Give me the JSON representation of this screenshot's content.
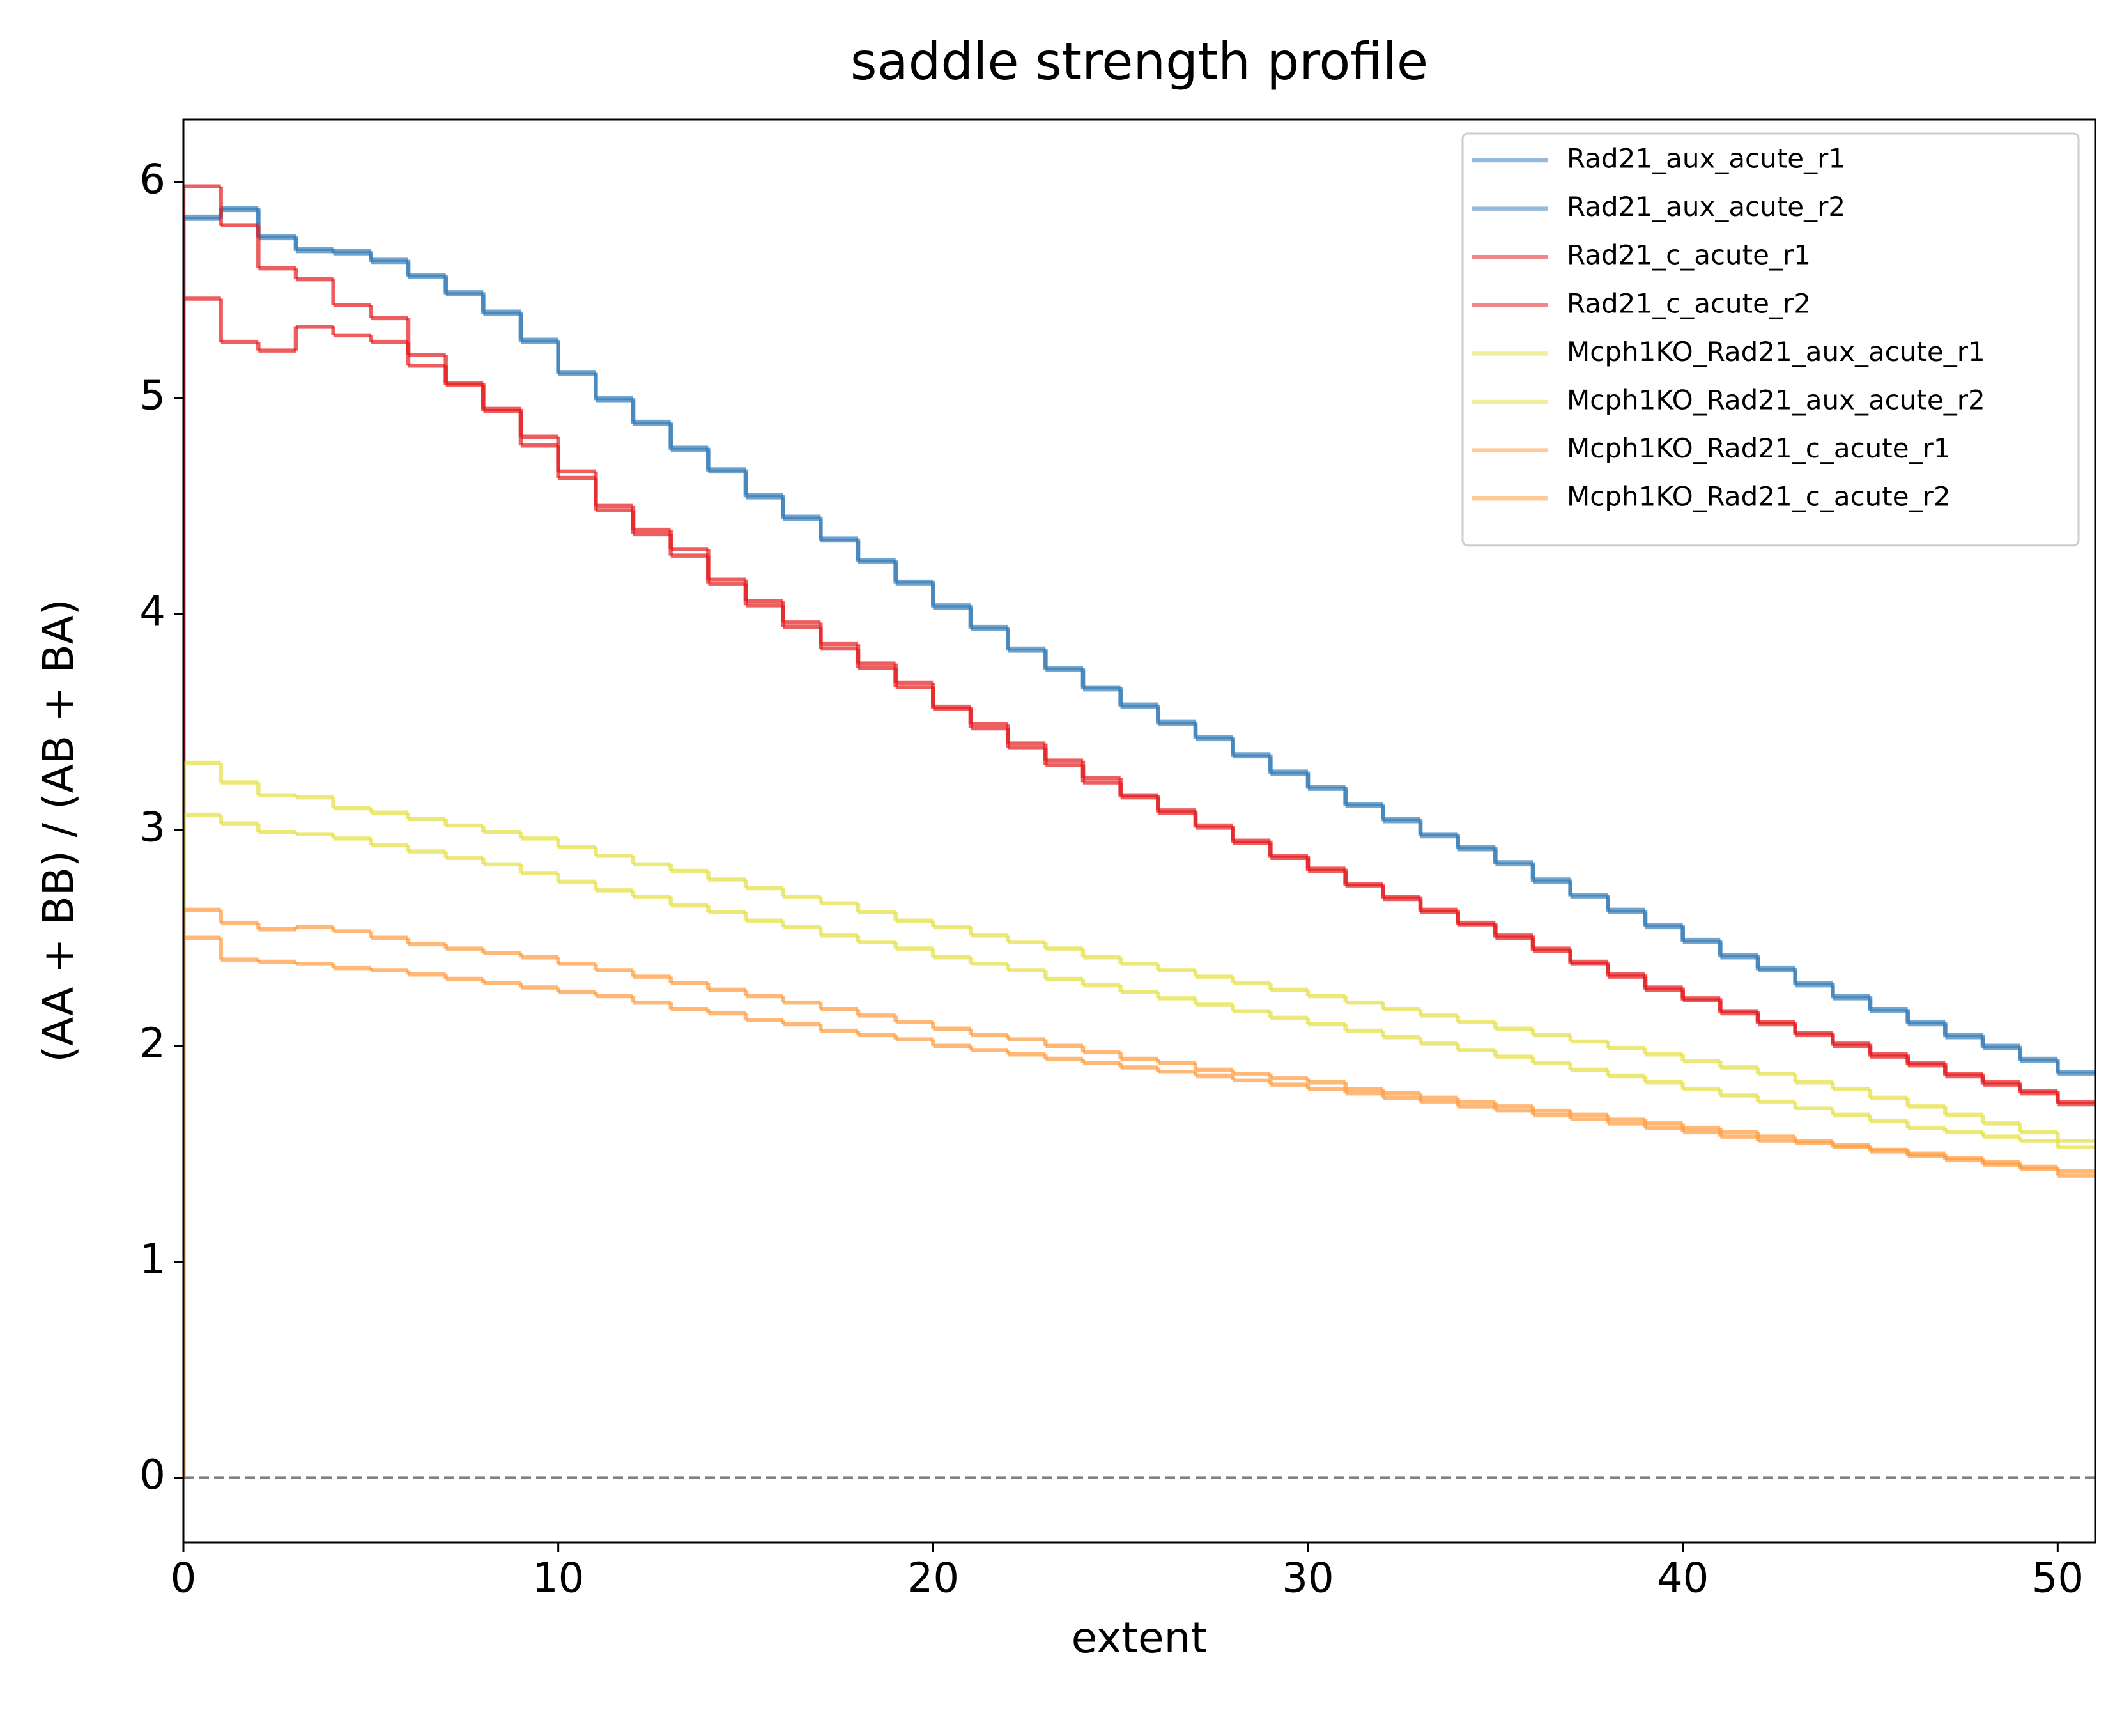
{
  "chart_data": {
    "type": "step",
    "title": "saddle strength profile",
    "xlabel": "extent",
    "ylabel": "(AA + BB) / (AB + BA)",
    "x": [
      0,
      1,
      2,
      3,
      4,
      5,
      6,
      7,
      8,
      9,
      10,
      11,
      12,
      13,
      14,
      15,
      16,
      17,
      18,
      19,
      20,
      21,
      22,
      23,
      24,
      25,
      26,
      27,
      28,
      29,
      30,
      31,
      32,
      33,
      34,
      35,
      36,
      37,
      38,
      39,
      40,
      41,
      42,
      43,
      44,
      45,
      46,
      47,
      48,
      49,
      50,
      51
    ],
    "xlim": [
      0,
      51
    ],
    "ylim": [
      -0.3,
      6.29
    ],
    "xticks": [
      0,
      10,
      20,
      30,
      40,
      50
    ],
    "yticks": [
      0,
      1,
      2,
      3,
      4,
      5,
      6
    ],
    "grid": false,
    "legend": "upper right",
    "alpha": 0.7,
    "hline": 0,
    "hline_color": "#808080",
    "series": [
      {
        "name": "Rad21_aux_acute_r1",
        "color": "#377eb8",
        "values": [
          0,
          5.84,
          5.88,
          5.75,
          5.69,
          5.68,
          5.64,
          5.57,
          5.49,
          5.4,
          5.27,
          5.12,
          5.0,
          4.89,
          4.77,
          4.67,
          4.55,
          4.45,
          4.35,
          4.25,
          4.15,
          4.04,
          3.94,
          3.84,
          3.75,
          3.66,
          3.58,
          3.5,
          3.43,
          3.35,
          3.27,
          3.2,
          3.12,
          3.05,
          2.98,
          2.92,
          2.85,
          2.77,
          2.7,
          2.63,
          2.56,
          2.49,
          2.42,
          2.36,
          2.29,
          2.23,
          2.17,
          2.11,
          2.05,
          2.0,
          1.94,
          1.88
        ]
      },
      {
        "name": "Rad21_aux_acute_r2",
        "color": "#377eb8",
        "values": [
          0,
          5.83,
          5.87,
          5.74,
          5.68,
          5.67,
          5.63,
          5.56,
          5.48,
          5.39,
          5.26,
          5.11,
          4.99,
          4.88,
          4.76,
          4.66,
          4.54,
          4.44,
          4.34,
          4.24,
          4.14,
          4.03,
          3.93,
          3.83,
          3.74,
          3.65,
          3.57,
          3.49,
          3.42,
          3.34,
          3.26,
          3.19,
          3.11,
          3.04,
          2.97,
          2.91,
          2.84,
          2.76,
          2.69,
          2.62,
          2.55,
          2.48,
          2.41,
          2.35,
          2.28,
          2.22,
          2.16,
          2.1,
          2.04,
          1.99,
          1.93,
          1.87
        ]
      },
      {
        "name": "Rad21_c_acute_r1",
        "color": "#e41a1c",
        "values": [
          0,
          5.98,
          5.8,
          5.6,
          5.55,
          5.43,
          5.37,
          5.2,
          5.06,
          4.95,
          4.82,
          4.66,
          4.5,
          4.39,
          4.3,
          4.16,
          4.06,
          3.96,
          3.86,
          3.77,
          3.68,
          3.57,
          3.49,
          3.4,
          3.32,
          3.24,
          3.16,
          3.09,
          3.02,
          2.95,
          2.88,
          2.82,
          2.75,
          2.69,
          2.63,
          2.57,
          2.51,
          2.45,
          2.39,
          2.33,
          2.27,
          2.22,
          2.16,
          2.11,
          2.06,
          2.01,
          1.96,
          1.92,
          1.87,
          1.83,
          1.79,
          1.74
        ]
      },
      {
        "name": "Rad21_c_acute_r2",
        "color": "#e41a1c",
        "values": [
          0,
          5.46,
          5.26,
          5.22,
          5.33,
          5.29,
          5.26,
          5.15,
          5.07,
          4.94,
          4.78,
          4.63,
          4.48,
          4.37,
          4.27,
          4.14,
          4.04,
          3.94,
          3.84,
          3.75,
          3.66,
          3.56,
          3.47,
          3.38,
          3.3,
          3.22,
          3.15,
          3.08,
          3.01,
          2.94,
          2.87,
          2.81,
          2.74,
          2.68,
          2.62,
          2.56,
          2.5,
          2.44,
          2.38,
          2.32,
          2.26,
          2.21,
          2.15,
          2.1,
          2.05,
          2.0,
          1.95,
          1.91,
          1.86,
          1.82,
          1.78,
          1.73
        ]
      },
      {
        "name": "Mcph1KO_Rad21_aux_acute_r1",
        "color": "#e5e040",
        "values": [
          0,
          3.31,
          3.22,
          3.16,
          3.15,
          3.1,
          3.08,
          3.05,
          3.02,
          2.99,
          2.96,
          2.92,
          2.88,
          2.84,
          2.81,
          2.77,
          2.73,
          2.69,
          2.66,
          2.62,
          2.58,
          2.55,
          2.51,
          2.48,
          2.45,
          2.41,
          2.38,
          2.35,
          2.32,
          2.29,
          2.26,
          2.23,
          2.2,
          2.17,
          2.14,
          2.11,
          2.08,
          2.05,
          2.02,
          1.99,
          1.96,
          1.93,
          1.9,
          1.87,
          1.83,
          1.8,
          1.76,
          1.72,
          1.68,
          1.64,
          1.6,
          1.56
        ]
      },
      {
        "name": "Mcph1KO_Rad21_aux_acute_r2",
        "color": "#e5e040",
        "values": [
          0,
          3.07,
          3.03,
          2.99,
          2.98,
          2.96,
          2.93,
          2.9,
          2.87,
          2.84,
          2.8,
          2.76,
          2.72,
          2.69,
          2.65,
          2.62,
          2.58,
          2.55,
          2.51,
          2.48,
          2.45,
          2.41,
          2.38,
          2.35,
          2.31,
          2.28,
          2.25,
          2.22,
          2.19,
          2.16,
          2.13,
          2.1,
          2.07,
          2.04,
          2.01,
          1.98,
          1.95,
          1.92,
          1.89,
          1.86,
          1.83,
          1.8,
          1.77,
          1.74,
          1.71,
          1.68,
          1.65,
          1.62,
          1.6,
          1.58,
          1.56,
          1.53
        ]
      },
      {
        "name": "Mcph1KO_Rad21_c_acute_r1",
        "color": "#ff9a3c",
        "values": [
          0,
          2.63,
          2.57,
          2.54,
          2.55,
          2.53,
          2.5,
          2.47,
          2.45,
          2.43,
          2.41,
          2.38,
          2.35,
          2.32,
          2.29,
          2.26,
          2.23,
          2.2,
          2.17,
          2.14,
          2.11,
          2.08,
          2.05,
          2.03,
          2.0,
          1.97,
          1.94,
          1.92,
          1.89,
          1.87,
          1.85,
          1.83,
          1.8,
          1.78,
          1.76,
          1.74,
          1.72,
          1.7,
          1.68,
          1.66,
          1.64,
          1.62,
          1.6,
          1.58,
          1.56,
          1.54,
          1.52,
          1.5,
          1.48,
          1.46,
          1.44,
          1.42
        ]
      },
      {
        "name": "Mcph1KO_Rad21_c_acute_r2",
        "color": "#ff9a3c",
        "values": [
          0,
          2.5,
          2.4,
          2.39,
          2.38,
          2.36,
          2.35,
          2.33,
          2.31,
          2.29,
          2.27,
          2.25,
          2.23,
          2.2,
          2.17,
          2.15,
          2.12,
          2.1,
          2.07,
          2.05,
          2.03,
          2.0,
          1.98,
          1.96,
          1.94,
          1.92,
          1.9,
          1.88,
          1.86,
          1.84,
          1.82,
          1.8,
          1.78,
          1.76,
          1.74,
          1.72,
          1.7,
          1.68,
          1.66,
          1.64,
          1.62,
          1.6,
          1.58,
          1.56,
          1.55,
          1.53,
          1.51,
          1.49,
          1.47,
          1.45,
          1.43,
          1.4
        ]
      }
    ]
  }
}
